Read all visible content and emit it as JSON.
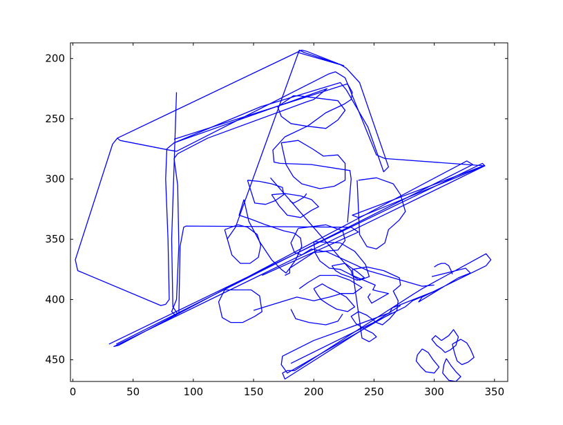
{
  "chart_data": {
    "type": "line",
    "title": "",
    "xlabel": "",
    "ylabel": "",
    "xlim": [
      -2,
      361
    ],
    "ylim": [
      468,
      187
    ],
    "y_inverted": true,
    "grid": false,
    "x_ticks": [
      0,
      50,
      100,
      150,
      200,
      250,
      300,
      350
    ],
    "x_tick_labels": [
      "0",
      "50",
      "100",
      "150",
      "200",
      "250",
      "300",
      "350"
    ],
    "y_ticks": [
      200,
      250,
      300,
      350,
      400,
      450
    ],
    "y_tick_labels": [
      "200",
      "250",
      "300",
      "350",
      "400",
      "450"
    ],
    "line_color": "#0000ff",
    "series": [
      {
        "x": [
          37,
          190,
          194,
          222,
          227,
          238,
          262,
          258,
          245,
          227,
          222,
          156,
          84,
          78,
          77,
          79,
          80,
          77,
          73,
          4,
          2,
          33,
          37,
          39
        ],
        "y": [
          266,
          193,
          194,
          205,
          208,
          220,
          290,
          294,
          257,
          226,
          220,
          240,
          270,
          275,
          300,
          350,
          400,
          404,
          405,
          376,
          367,
          271,
          266,
          268
        ]
      },
      {
        "x": [
          39,
          80,
          86,
          212,
          218,
          226,
          252,
          259,
          341,
          232,
          237,
          342
        ],
        "y": [
          268,
          276,
          277,
          213,
          211,
          216,
          280,
          283,
          289,
          330,
          332,
          289
        ]
      },
      {
        "x": [
          187,
          225,
          192,
          188,
          135,
          128
        ],
        "y": [
          195,
          206,
          195,
          193,
          340,
          350
        ]
      },
      {
        "x": [
          84,
          211,
          200,
          194,
          112,
          87,
          84,
          87,
          88,
          86,
          82,
          86
        ],
        "y": [
          270,
          225,
          234,
          236,
          266,
          279,
          283,
          305,
          355,
          400,
          410,
          414
        ]
      },
      {
        "x": [
          84,
          228,
          232,
          231,
          225,
          210,
          195,
          176,
          166,
          167,
          172,
          198,
          230,
          231,
          228
        ],
        "y": [
          267,
          221,
          228,
          234,
          238,
          245,
          256,
          265,
          276,
          286,
          287,
          288,
          293,
          300,
          336
        ]
      },
      {
        "x": [
          86,
          82,
          83,
          87,
          88,
          89,
          92,
          94,
          231,
          237,
          157
        ],
        "y": [
          228,
          350,
          406,
          412,
          411,
          356,
          340,
          339,
          340,
          344,
          380
        ]
      },
      {
        "x": [
          30,
          340,
          342,
          34,
          38,
          327,
          332,
          36
        ],
        "y": [
          437,
          287,
          289,
          439,
          438,
          285,
          288,
          437
        ]
      },
      {
        "x": [
          265,
          178,
          173,
          174,
          200,
          225,
          263,
          265,
          303,
          282,
          276,
          181
        ],
        "y": [
          411,
          461,
          454,
          447,
          434,
          425,
          411,
          407,
          392,
          401,
          406,
          453
        ]
      },
      {
        "x": [
          272,
          176,
          174,
          178,
          184,
          282,
          290,
          343,
          347,
          343,
          290,
          287,
          320,
          330,
          326,
          298
        ],
        "y": [
          405,
          466,
          461,
          459,
          459,
          396,
          391,
          362,
          367,
          372,
          398,
          402,
          382,
          378,
          374,
          381
        ]
      },
      {
        "x": [
          142,
          138,
          147,
          160,
          175,
          184,
          189,
          190,
          185,
          180,
          177,
          173,
          165,
          155,
          146,
          142
        ],
        "y": [
          317,
          330,
          333,
          338,
          343,
          345,
          349,
          356,
          367,
          374,
          378,
          375,
          367,
          352,
          335,
          317
        ]
      },
      {
        "x": [
          173,
          187,
          199,
          208,
          220,
          226,
          226,
          217,
          205,
          190,
          183,
          177,
          173
        ],
        "y": [
          270,
          268,
          275,
          281,
          280,
          287,
          301,
          306,
          308,
          304,
          298,
          288,
          270
        ]
      },
      {
        "x": [
          188,
          220,
          226,
          220,
          210,
          193,
          181,
          173,
          170,
          183,
          188
        ],
        "y": [
          231,
          235,
          243,
          251,
          258,
          256,
          254,
          248,
          240,
          231,
          231
        ]
      },
      {
        "x": [
          237,
          252,
          266,
          272,
          276,
          271,
          262,
          259,
          252,
          244,
          238,
          236
        ],
        "y": [
          301,
          299,
          304,
          313,
          327,
          334,
          342,
          353,
          358,
          356,
          346,
          301
        ]
      },
      {
        "x": [
          187,
          210,
          224,
          226,
          220,
          208,
          198,
          190,
          184,
          181,
          187
        ],
        "y": [
          341,
          338,
          343,
          351,
          359,
          360,
          358,
          363,
          361,
          353,
          341
        ]
      },
      {
        "x": [
          200,
          222,
          234,
          243,
          246,
          238,
          230,
          222,
          213,
          205,
          201,
          200
        ],
        "y": [
          352,
          353,
          360,
          371,
          381,
          384,
          379,
          375,
          374,
          368,
          361,
          352
        ]
      },
      {
        "x": [
          176,
          180,
          180,
          200,
          210,
          245,
          290,
          300
        ],
        "y": [
          380,
          378,
          374,
          361,
          360,
          376,
          389,
          388
        ]
      },
      {
        "x": [
          232,
          244,
          258,
          271,
          272,
          266,
          270,
          269,
          263,
          257,
          252,
          244,
          237,
          231,
          235,
          243,
          249,
          252,
          246,
          240,
          232
        ],
        "y": [
          375,
          373,
          376,
          382,
          388,
          393,
          401,
          409,
          416,
          421,
          419,
          413,
          410,
          414,
          420,
          425,
          428,
          431,
          435,
          432,
          375
        ]
      },
      {
        "x": [
          200,
          207,
          212,
          220,
          227,
          234,
          228,
          219,
          212,
          206,
          203,
          200
        ],
        "y": [
          391,
          387,
          390,
          394,
          398,
          406,
          410,
          408,
          404,
          400,
          396,
          391
        ]
      },
      {
        "x": [
          306,
          312,
          316,
          320,
          318,
          313,
          309,
          306,
          302,
          298,
          301,
          306
        ],
        "y": [
          434,
          430,
          425,
          431,
          438,
          442,
          444,
          441,
          438,
          433,
          430,
          434
        ]
      },
      {
        "x": [
          315,
          322,
          327,
          330,
          333,
          328,
          323,
          319,
          317,
          315
        ],
        "y": [
          437,
          433,
          436,
          441,
          448,
          452,
          454,
          451,
          445,
          437
        ]
      },
      {
        "x": [
          290,
          295,
          299,
          304,
          300,
          293,
          289,
          285,
          286,
          290
        ],
        "y": [
          441,
          444,
          450,
          456,
          461,
          460,
          456,
          451,
          446,
          441
        ]
      },
      {
        "x": [
          310,
          314,
          318,
          322,
          318,
          312,
          307,
          308,
          310
        ],
        "y": [
          449,
          455,
          460,
          464,
          468,
          467,
          461,
          454,
          449
        ]
      },
      {
        "x": [
          300,
          303,
          306,
          309,
          312,
          314,
          315
        ],
        "y": [
          373,
          371,
          370,
          370,
          372,
          376,
          379
        ]
      },
      {
        "x": [
          126,
          137,
          145,
          153,
          156,
          154,
          147,
          139,
          132,
          126
        ],
        "y": [
          342,
          338,
          340,
          346,
          355,
          365,
          370,
          370,
          363,
          342
        ]
      },
      {
        "x": [
          126,
          148,
          155,
          157,
          151,
          141,
          131,
          124,
          121,
          126
        ],
        "y": [
          392,
          392,
          397,
          410,
          414,
          419,
          419,
          415,
          402,
          392
        ]
      },
      {
        "x": [
          150,
          186,
          200,
          213,
          223,
          233,
          240,
          230,
          219,
          205,
          195,
          188
        ],
        "y": [
          409,
          398,
          401,
          398,
          395,
          395,
          390,
          384,
          380,
          380,
          386,
          391
        ]
      },
      {
        "x": [
          181,
          185,
          196,
          210,
          220,
          224
        ],
        "y": [
          408,
          416,
          419,
          421,
          418,
          412
        ]
      },
      {
        "x": [
          164,
          231,
          232,
          251,
          249,
          253,
          262,
          248,
          245,
          247
        ],
        "y": [
          299,
          376,
          380,
          388,
          392,
          393,
          395,
          403,
          398,
          395
        ]
      },
      {
        "x": [
          215,
          226,
          230,
          236,
          242,
          236,
          229,
          223,
          218,
          215
        ],
        "y": [
          372,
          370,
          373,
          377,
          382,
          384,
          381,
          379,
          376,
          372
        ]
      },
      {
        "x": [
          145,
          155,
          165,
          174,
          175,
          168,
          160,
          151,
          145
        ],
        "y": [
          301,
          302,
          304,
          307,
          313,
          318,
          321,
          320,
          301
        ]
      },
      {
        "x": [
          165,
          176,
          189,
          198,
          204,
          198,
          189,
          178,
          171,
          165
        ],
        "y": [
          313,
          312,
          314,
          317,
          323,
          326,
          332,
          330,
          322,
          313
        ]
      },
      {
        "x": [
          180,
          183,
          187,
          192,
          194
        ],
        "y": [
          318,
          320,
          318,
          315,
          312
        ]
      }
    ]
  }
}
